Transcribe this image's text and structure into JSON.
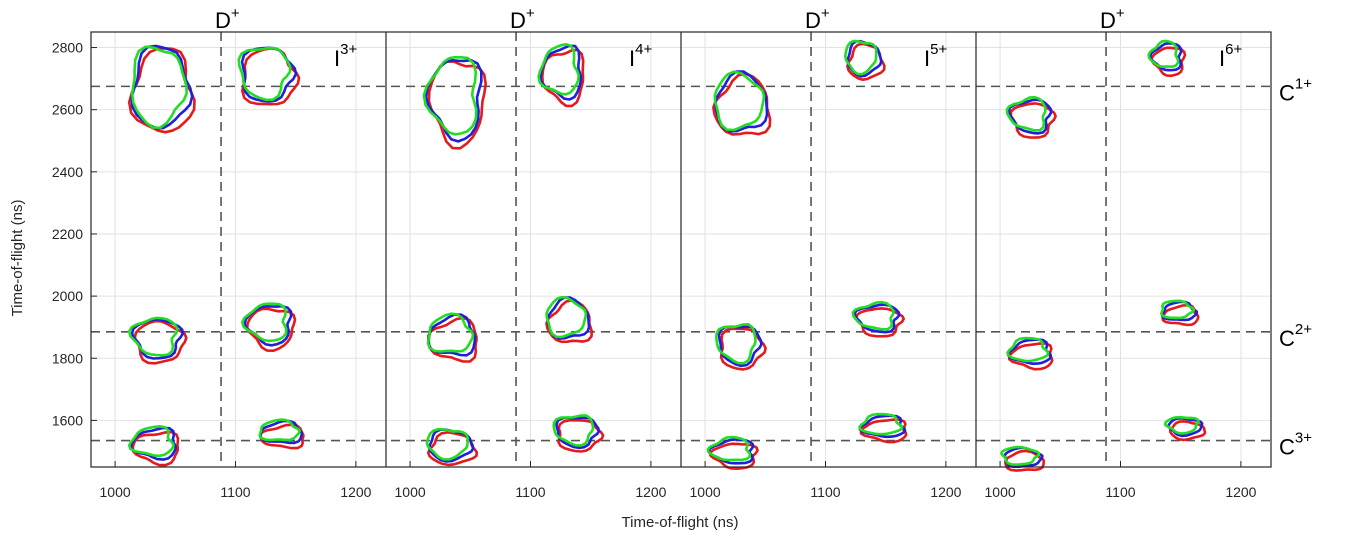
{
  "chart_data": {
    "type": "contour",
    "xlabel": "Time-of-flight (ns)",
    "ylabel": "Time-of-flight (ns)",
    "ylim": [
      1450,
      2850
    ],
    "yticks": [
      1600,
      1800,
      2000,
      2200,
      2400,
      2600,
      2800
    ],
    "grid": true,
    "series_colors": [
      "#e41a1c",
      "#1f1fdc",
      "#22dd22"
    ],
    "reference_lines": {
      "vertical": {
        "label": "D",
        "charge": "+",
        "x": 1088
      },
      "horizontal": [
        {
          "label": "C",
          "charge": "1+",
          "y": 2675
        },
        {
          "label": "C",
          "charge": "2+",
          "y": 1885
        },
        {
          "label": "C",
          "charge": "3+",
          "y": 1535
        }
      ]
    },
    "panels": [
      {
        "ion": "I",
        "charge": "3+",
        "xlim": [
          980,
          1225
        ],
        "xticks": [
          1000,
          1100,
          1200
        ],
        "islands": [
          {
            "x": 1040,
            "y": 2670,
            "w": 55,
            "h": 270
          },
          {
            "x": 1128,
            "y": 2715,
            "w": 50,
            "h": 180
          },
          {
            "x": 1037,
            "y": 1865,
            "w": 45,
            "h": 130
          },
          {
            "x": 1130,
            "y": 1910,
            "w": 42,
            "h": 130
          },
          {
            "x": 1035,
            "y": 1525,
            "w": 42,
            "h": 100
          },
          {
            "x": 1140,
            "y": 1560,
            "w": 40,
            "h": 70
          }
        ]
      },
      {
        "ion": "I",
        "charge": "4+",
        "xlim": [
          980,
          1225
        ],
        "xticks": [
          1000,
          1100,
          1200
        ],
        "islands": [
          {
            "x": 1040,
            "y": 2640,
            "w": 50,
            "h": 270
          },
          {
            "x": 1128,
            "y": 2720,
            "w": 38,
            "h": 170
          },
          {
            "x": 1037,
            "y": 1870,
            "w": 45,
            "h": 130
          },
          {
            "x": 1133,
            "y": 1925,
            "w": 40,
            "h": 130
          },
          {
            "x": 1035,
            "y": 1520,
            "w": 42,
            "h": 100
          },
          {
            "x": 1140,
            "y": 1565,
            "w": 40,
            "h": 100
          }
        ]
      },
      {
        "ion": "I",
        "charge": "5+",
        "xlim": [
          980,
          1225
        ],
        "xticks": [
          1000,
          1100,
          1200
        ],
        "islands": [
          {
            "x": 1032,
            "y": 2620,
            "w": 50,
            "h": 190
          },
          {
            "x": 1133,
            "y": 2765,
            "w": 32,
            "h": 110
          },
          {
            "x": 1030,
            "y": 1845,
            "w": 40,
            "h": 130
          },
          {
            "x": 1145,
            "y": 1930,
            "w": 40,
            "h": 90
          },
          {
            "x": 1025,
            "y": 1500,
            "w": 40,
            "h": 80
          },
          {
            "x": 1150,
            "y": 1580,
            "w": 40,
            "h": 70
          }
        ]
      },
      {
        "ion": "I",
        "charge": "6+",
        "xlim": [
          980,
          1225
        ],
        "xticks": [
          1000,
          1100,
          1200
        ],
        "islands": [
          {
            "x": 1027,
            "y": 2580,
            "w": 38,
            "h": 110
          },
          {
            "x": 1140,
            "y": 2770,
            "w": 28,
            "h": 90
          },
          {
            "x": 1027,
            "y": 1820,
            "w": 38,
            "h": 80
          },
          {
            "x": 1150,
            "y": 1950,
            "w": 32,
            "h": 60
          },
          {
            "x": 1020,
            "y": 1480,
            "w": 36,
            "h": 60
          },
          {
            "x": 1155,
            "y": 1580,
            "w": 32,
            "h": 55
          }
        ]
      }
    ]
  }
}
